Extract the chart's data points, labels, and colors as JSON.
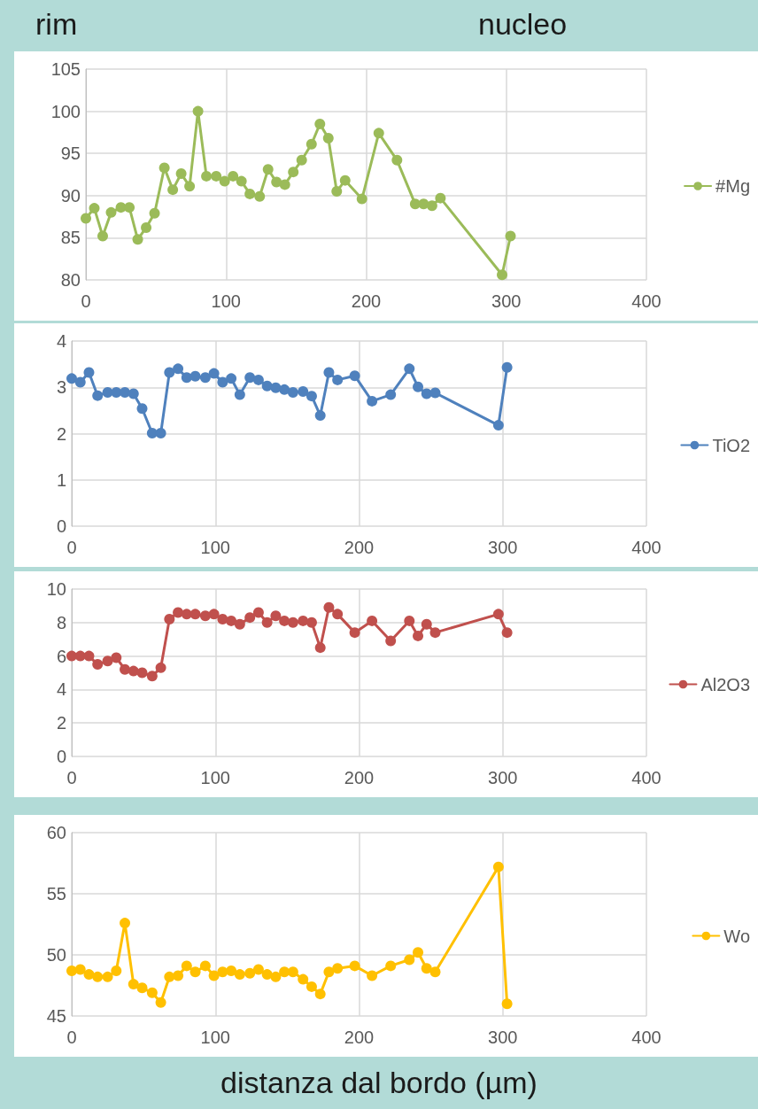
{
  "chart_data": [
    {
      "type": "line",
      "annotations": [
        "rim",
        "nucleo"
      ],
      "x": [
        0,
        6,
        12,
        18,
        25,
        31,
        37,
        43,
        49,
        56,
        62,
        68,
        74,
        80,
        86,
        93,
        99,
        105,
        111,
        117,
        124,
        130,
        136,
        142,
        148,
        154,
        161,
        167,
        173,
        179,
        185,
        197,
        209,
        222,
        235,
        241,
        247,
        253,
        297,
        303
      ],
      "series": [
        {
          "name": "#Mg",
          "color": "#9bbb59",
          "values": [
            87.3,
            88.5,
            85.2,
            88.0,
            88.6,
            88.6,
            84.8,
            86.2,
            87.9,
            93.3,
            90.7,
            92.6,
            91.1,
            100.0,
            92.3,
            92.3,
            91.7,
            92.3,
            91.7,
            90.2,
            89.9,
            93.1,
            91.6,
            91.3,
            92.8,
            94.2,
            96.1,
            98.5,
            96.8,
            90.5,
            91.8,
            89.6,
            97.4,
            94.2,
            89.0,
            89.0,
            88.8,
            89.7,
            80.6,
            85.2
          ]
        }
      ],
      "xlim": [
        0,
        400
      ],
      "xticks": [
        0,
        100,
        200,
        300,
        400
      ],
      "ylim": [
        80,
        105
      ],
      "yticks": [
        80,
        85,
        90,
        95,
        100,
        105
      ],
      "grid": true,
      "legend": "right",
      "marker": "circle",
      "line_style": "solid"
    },
    {
      "type": "line",
      "x": [
        0,
        6,
        12,
        18,
        25,
        31,
        37,
        43,
        49,
        56,
        62,
        68,
        74,
        80,
        86,
        93,
        99,
        105,
        111,
        117,
        124,
        130,
        136,
        142,
        148,
        154,
        161,
        167,
        173,
        179,
        185,
        197,
        209,
        222,
        235,
        241,
        247,
        253,
        297,
        303
      ],
      "series": [
        {
          "name": "TiO2",
          "color": "#4f81bd",
          "values": [
            3.19,
            3.11,
            3.32,
            2.82,
            2.89,
            2.89,
            2.89,
            2.86,
            2.54,
            2.01,
            2.01,
            3.32,
            3.4,
            3.21,
            3.24,
            3.21,
            3.3,
            3.11,
            3.19,
            2.84,
            3.21,
            3.16,
            3.03,
            2.99,
            2.95,
            2.89,
            2.91,
            2.81,
            2.39,
            3.32,
            3.16,
            3.25,
            2.7,
            2.84,
            3.4,
            3.01,
            2.86,
            2.88,
            2.18,
            3.43
          ]
        }
      ],
      "xlim": [
        0,
        400
      ],
      "xticks": [
        0,
        100,
        200,
        300,
        400
      ],
      "ylim": [
        0,
        4
      ],
      "yticks": [
        0,
        1,
        2,
        3,
        4
      ],
      "grid": true,
      "legend": "right",
      "marker": "circle",
      "line_style": "solid"
    },
    {
      "type": "line",
      "x": [
        0,
        6,
        12,
        18,
        25,
        31,
        37,
        43,
        49,
        56,
        62,
        68,
        74,
        80,
        86,
        93,
        99,
        105,
        111,
        117,
        124,
        130,
        136,
        142,
        148,
        154,
        161,
        167,
        173,
        179,
        185,
        197,
        209,
        222,
        235,
        241,
        247,
        253,
        297,
        303
      ],
      "series": [
        {
          "name": "Al2O3",
          "color": "#c0504d",
          "values": [
            6.0,
            6.0,
            6.0,
            5.5,
            5.7,
            5.9,
            5.2,
            5.1,
            5.0,
            4.8,
            5.3,
            8.2,
            8.6,
            8.5,
            8.5,
            8.4,
            8.5,
            8.2,
            8.1,
            7.9,
            8.3,
            8.6,
            8.0,
            8.4,
            8.1,
            8.0,
            8.1,
            8.0,
            6.5,
            8.9,
            8.5,
            7.4,
            8.1,
            6.9,
            8.1,
            7.2,
            7.9,
            7.4,
            8.5,
            7.4
          ]
        }
      ],
      "xlim": [
        0,
        400
      ],
      "xticks": [
        0,
        100,
        200,
        300,
        400
      ],
      "ylim": [
        0,
        10
      ],
      "yticks": [
        0,
        2,
        4,
        6,
        8,
        10
      ],
      "grid": true,
      "legend": "right",
      "marker": "circle",
      "line_style": "solid"
    },
    {
      "type": "line",
      "xlabel": "distanza dal bordo (µm)",
      "x": [
        0,
        6,
        12,
        18,
        25,
        31,
        37,
        43,
        49,
        56,
        62,
        68,
        74,
        80,
        86,
        93,
        99,
        105,
        111,
        117,
        124,
        130,
        136,
        142,
        148,
        154,
        161,
        167,
        173,
        179,
        185,
        197,
        209,
        222,
        235,
        241,
        247,
        253,
        297,
        303
      ],
      "series": [
        {
          "name": "Wo",
          "color": "#ffc000",
          "values": [
            48.7,
            48.8,
            48.4,
            48.2,
            48.2,
            48.7,
            52.6,
            47.6,
            47.3,
            46.9,
            46.1,
            48.2,
            48.3,
            49.1,
            48.6,
            49.1,
            48.3,
            48.6,
            48.7,
            48.4,
            48.5,
            48.8,
            48.4,
            48.2,
            48.6,
            48.6,
            48.0,
            47.4,
            46.8,
            48.6,
            48.9,
            49.1,
            48.3,
            49.1,
            49.6,
            50.2,
            48.9,
            48.6,
            57.2,
            46.0
          ]
        }
      ],
      "xlim": [
        0,
        400
      ],
      "xticks": [
        0,
        100,
        200,
        300,
        400
      ],
      "ylim": [
        45,
        60
      ],
      "yticks": [
        45,
        50,
        55,
        60
      ],
      "grid": true,
      "legend": "right",
      "marker": "circle",
      "line_style": "solid"
    }
  ]
}
